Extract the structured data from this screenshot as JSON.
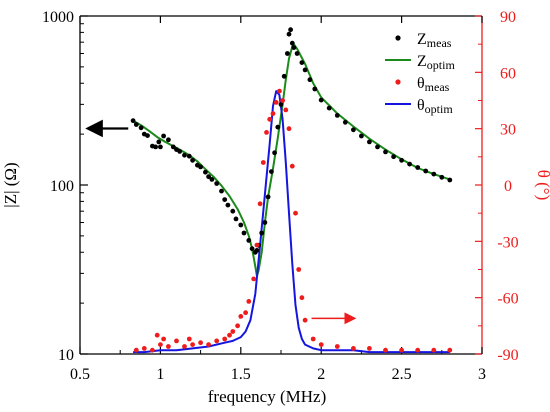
{
  "chart_data": {
    "type": "line",
    "xlabel": "frequency (MHz)",
    "ylabel_left": "|Z| (Ω)",
    "ylabel_right": "θ (°)",
    "xlim": [
      0.5,
      3
    ],
    "x_ticks": [
      0.5,
      1,
      1.5,
      2,
      2.5,
      3
    ],
    "x_tick_labels": [
      "0.5",
      "1",
      "1.5",
      "2",
      "2.5",
      "3"
    ],
    "y_left_scale": "log",
    "y_left_lim": [
      10,
      1000
    ],
    "y_left_ticks": [
      10,
      100,
      1000
    ],
    "y_left_tick_labels": [
      "10",
      "100",
      "1000"
    ],
    "y_right_lim": [
      -90,
      90
    ],
    "y_right_ticks": [
      -90,
      -60,
      -30,
      0,
      30,
      60,
      90
    ],
    "y_right_tick_labels": [
      "-90",
      "-60",
      "-30",
      "0",
      "30",
      "60",
      "90"
    ],
    "grid": false,
    "legend_position": "top-right",
    "legend": [
      {
        "main": "Z",
        "sub": "meas",
        "marker": "dot",
        "color": "#000000"
      },
      {
        "main": "Z",
        "sub": "optim",
        "marker": "line",
        "color": "#1a8a1a"
      },
      {
        "main": "θ",
        "sub": "meas",
        "marker": "dot",
        "color": "#ee1c1c"
      },
      {
        "main": "θ",
        "sub": "optim",
        "marker": "line",
        "color": "#1515e0"
      }
    ],
    "series": [
      {
        "name": "Zmeas",
        "axis": "left",
        "style": "markers",
        "color": "#000000",
        "x": [
          0.83,
          0.85,
          0.88,
          0.9,
          0.92,
          0.95,
          0.97,
          0.99,
          1.0,
          1.02,
          1.05,
          1.08,
          1.1,
          1.12,
          1.15,
          1.18,
          1.2,
          1.23,
          1.25,
          1.28,
          1.3,
          1.32,
          1.35,
          1.38,
          1.4,
          1.42,
          1.45,
          1.47,
          1.5,
          1.52,
          1.55,
          1.57,
          1.59,
          1.6,
          1.61,
          1.63,
          1.65,
          1.67,
          1.69,
          1.71,
          1.73,
          1.75,
          1.77,
          1.79,
          1.8,
          1.81,
          1.82,
          1.83,
          1.85,
          1.88,
          1.9,
          1.93,
          1.96,
          2.0,
          2.05,
          2.1,
          2.15,
          2.2,
          2.25,
          2.3,
          2.35,
          2.4,
          2.45,
          2.5,
          2.55,
          2.6,
          2.65,
          2.7,
          2.75,
          2.8
        ],
        "y": [
          240,
          228,
          218,
          200,
          196,
          170,
          168,
          180,
          168,
          195,
          185,
          168,
          162,
          158,
          150,
          148,
          140,
          131,
          128,
          119,
          112,
          108,
          102,
          92,
          82,
          76,
          70,
          63,
          58,
          52,
          47,
          42,
          40,
          41,
          44,
          52,
          60,
          85,
          120,
          155,
          220,
          300,
          440,
          600,
          780,
          830,
          690,
          650,
          600,
          530,
          480,
          420,
          370,
          318,
          285,
          258,
          235,
          212,
          195,
          180,
          168,
          157,
          147,
          140,
          133,
          127,
          121,
          116,
          111,
          107
        ]
      },
      {
        "name": "Zoptim",
        "axis": "left",
        "style": "line",
        "color": "#1a8a1a",
        "x": [
          0.83,
          0.88,
          0.93,
          0.98,
          1.03,
          1.08,
          1.13,
          1.18,
          1.23,
          1.28,
          1.33,
          1.38,
          1.43,
          1.48,
          1.52,
          1.55,
          1.57,
          1.59,
          1.6,
          1.61,
          1.63,
          1.65,
          1.67,
          1.7,
          1.73,
          1.76,
          1.78,
          1.8,
          1.82,
          1.83,
          1.85,
          1.9,
          1.95,
          2.0,
          2.1,
          2.2,
          2.3,
          2.4,
          2.5,
          2.6,
          2.7,
          2.8
        ],
        "y": [
          240,
          226,
          209,
          192,
          180,
          170,
          160,
          150,
          138,
          124,
          112,
          99,
          86,
          72,
          60,
          50,
          42,
          33,
          29,
          31,
          40,
          60,
          85,
          125,
          190,
          300,
          420,
          560,
          660,
          680,
          640,
          520,
          400,
          330,
          265,
          222,
          188,
          162,
          142,
          126,
          116,
          108
        ]
      },
      {
        "name": "θmeas",
        "axis": "right",
        "style": "markers",
        "color": "#ee1c1c",
        "x": [
          0.85,
          0.9,
          0.95,
          0.98,
          1.0,
          1.02,
          1.05,
          1.1,
          1.15,
          1.18,
          1.2,
          1.25,
          1.3,
          1.35,
          1.4,
          1.43,
          1.45,
          1.48,
          1.5,
          1.53,
          1.55,
          1.58,
          1.6,
          1.62,
          1.64,
          1.66,
          1.68,
          1.7,
          1.72,
          1.74,
          1.76,
          1.78,
          1.8,
          1.82,
          1.84,
          1.86,
          1.88,
          1.9,
          1.95,
          2.0,
          2.1,
          2.2,
          2.3,
          2.4,
          2.5,
          2.6,
          2.7,
          2.8
        ],
        "y": [
          -88,
          -87,
          -88,
          -80,
          -85,
          -82,
          -86,
          -83,
          -86,
          -82,
          -85,
          -84,
          -85,
          -83,
          -82,
          -80,
          -78,
          -75,
          -70,
          -68,
          -62,
          -50,
          -32,
          -10,
          12,
          28,
          35,
          38,
          44,
          50,
          45,
          40,
          30,
          10,
          -15,
          -45,
          -60,
          -72,
          -82,
          -85,
          -86,
          -87,
          -87,
          -88,
          -88,
          -88,
          -88,
          -88
        ]
      },
      {
        "name": "θoptim",
        "axis": "right",
        "style": "line",
        "color": "#1515e0",
        "x": [
          0.83,
          0.9,
          1.0,
          1.1,
          1.2,
          1.3,
          1.4,
          1.45,
          1.5,
          1.53,
          1.56,
          1.59,
          1.62,
          1.65,
          1.68,
          1.7,
          1.72,
          1.74,
          1.76,
          1.78,
          1.8,
          1.82,
          1.84,
          1.86,
          1.88,
          1.9,
          1.95,
          2.0,
          2.1,
          2.2,
          2.3,
          2.4,
          2.5,
          2.6,
          2.7,
          2.8
        ],
        "y": [
          -89,
          -89,
          -88,
          -88,
          -87,
          -86,
          -84,
          -83,
          -81,
          -78,
          -72,
          -58,
          -32,
          -5,
          22,
          42,
          50,
          48,
          35,
          12,
          -15,
          -42,
          -64,
          -76,
          -82,
          -85,
          -87,
          -88,
          -88,
          -88,
          -89,
          -89,
          -89,
          -89,
          -89,
          -89
        ]
      }
    ],
    "annotations": [
      {
        "type": "arrow",
        "direction": "left",
        "axis": "left",
        "color": "#000000"
      },
      {
        "type": "arrow",
        "direction": "right",
        "axis": "right",
        "color": "#ee1c1c"
      }
    ]
  }
}
